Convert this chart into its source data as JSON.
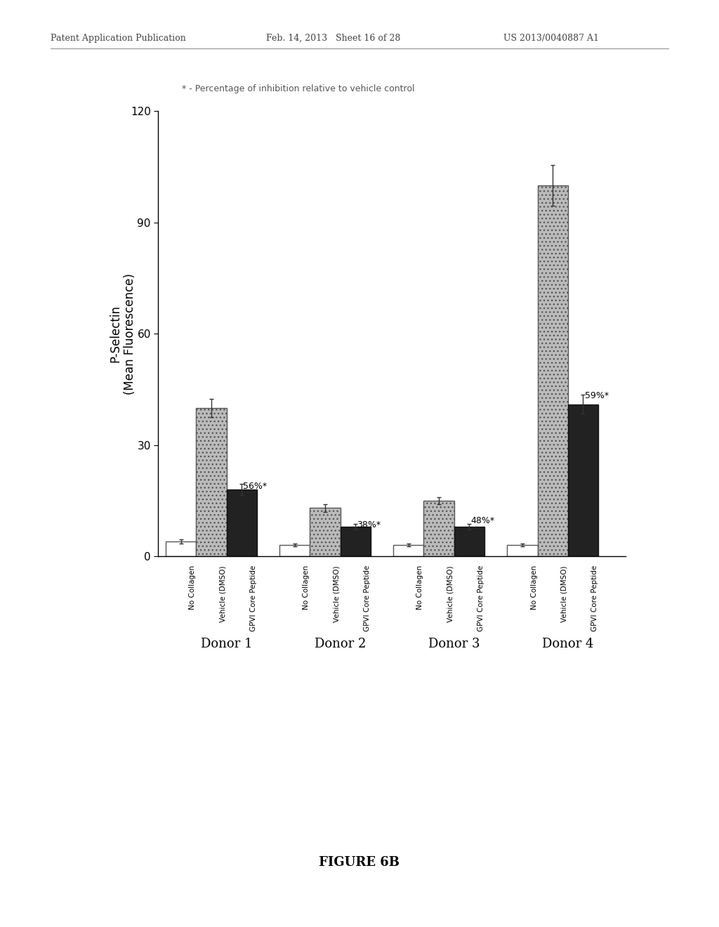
{
  "donors": [
    "Donor 1",
    "Donor 2",
    "Donor 3",
    "Donor 4"
  ],
  "bar_labels": [
    "No Collagen",
    "Vehicle (DMSO)",
    "GPVI Core Peptide"
  ],
  "values": {
    "Donor 1": [
      4,
      40,
      18
    ],
    "Donor 2": [
      3,
      13,
      8
    ],
    "Donor 3": [
      3,
      15,
      8
    ],
    "Donor 4": [
      3,
      100,
      41
    ]
  },
  "errors": {
    "Donor 1": [
      0.5,
      2.5,
      1.5
    ],
    "Donor 2": [
      0.4,
      1.0,
      0.8
    ],
    "Donor 3": [
      0.4,
      1.0,
      0.8
    ],
    "Donor 4": [
      0.4,
      5.5,
      2.5
    ]
  },
  "annotations": {
    "Donor 1": [
      "56%*",
      1
    ],
    "Donor 2": [
      "38%*",
      1
    ],
    "Donor 3": [
      "48%*",
      1
    ],
    "Donor 4": [
      "59%*",
      2
    ]
  },
  "ylabel": "P-Selectin\n(Mean Fluorescence)",
  "ylim": [
    0,
    120
  ],
  "yticks": [
    0,
    30,
    60,
    90,
    120
  ],
  "annotation_note": "* - Percentage of inhibition relative to vehicle control",
  "figure_label": "FIGURE 6B",
  "background_color": "#ffffff",
  "header_left": "Patent Application Publication",
  "header_mid": "Feb. 14, 2013   Sheet 16 of 28",
  "header_right": "US 2013/0040887 A1"
}
